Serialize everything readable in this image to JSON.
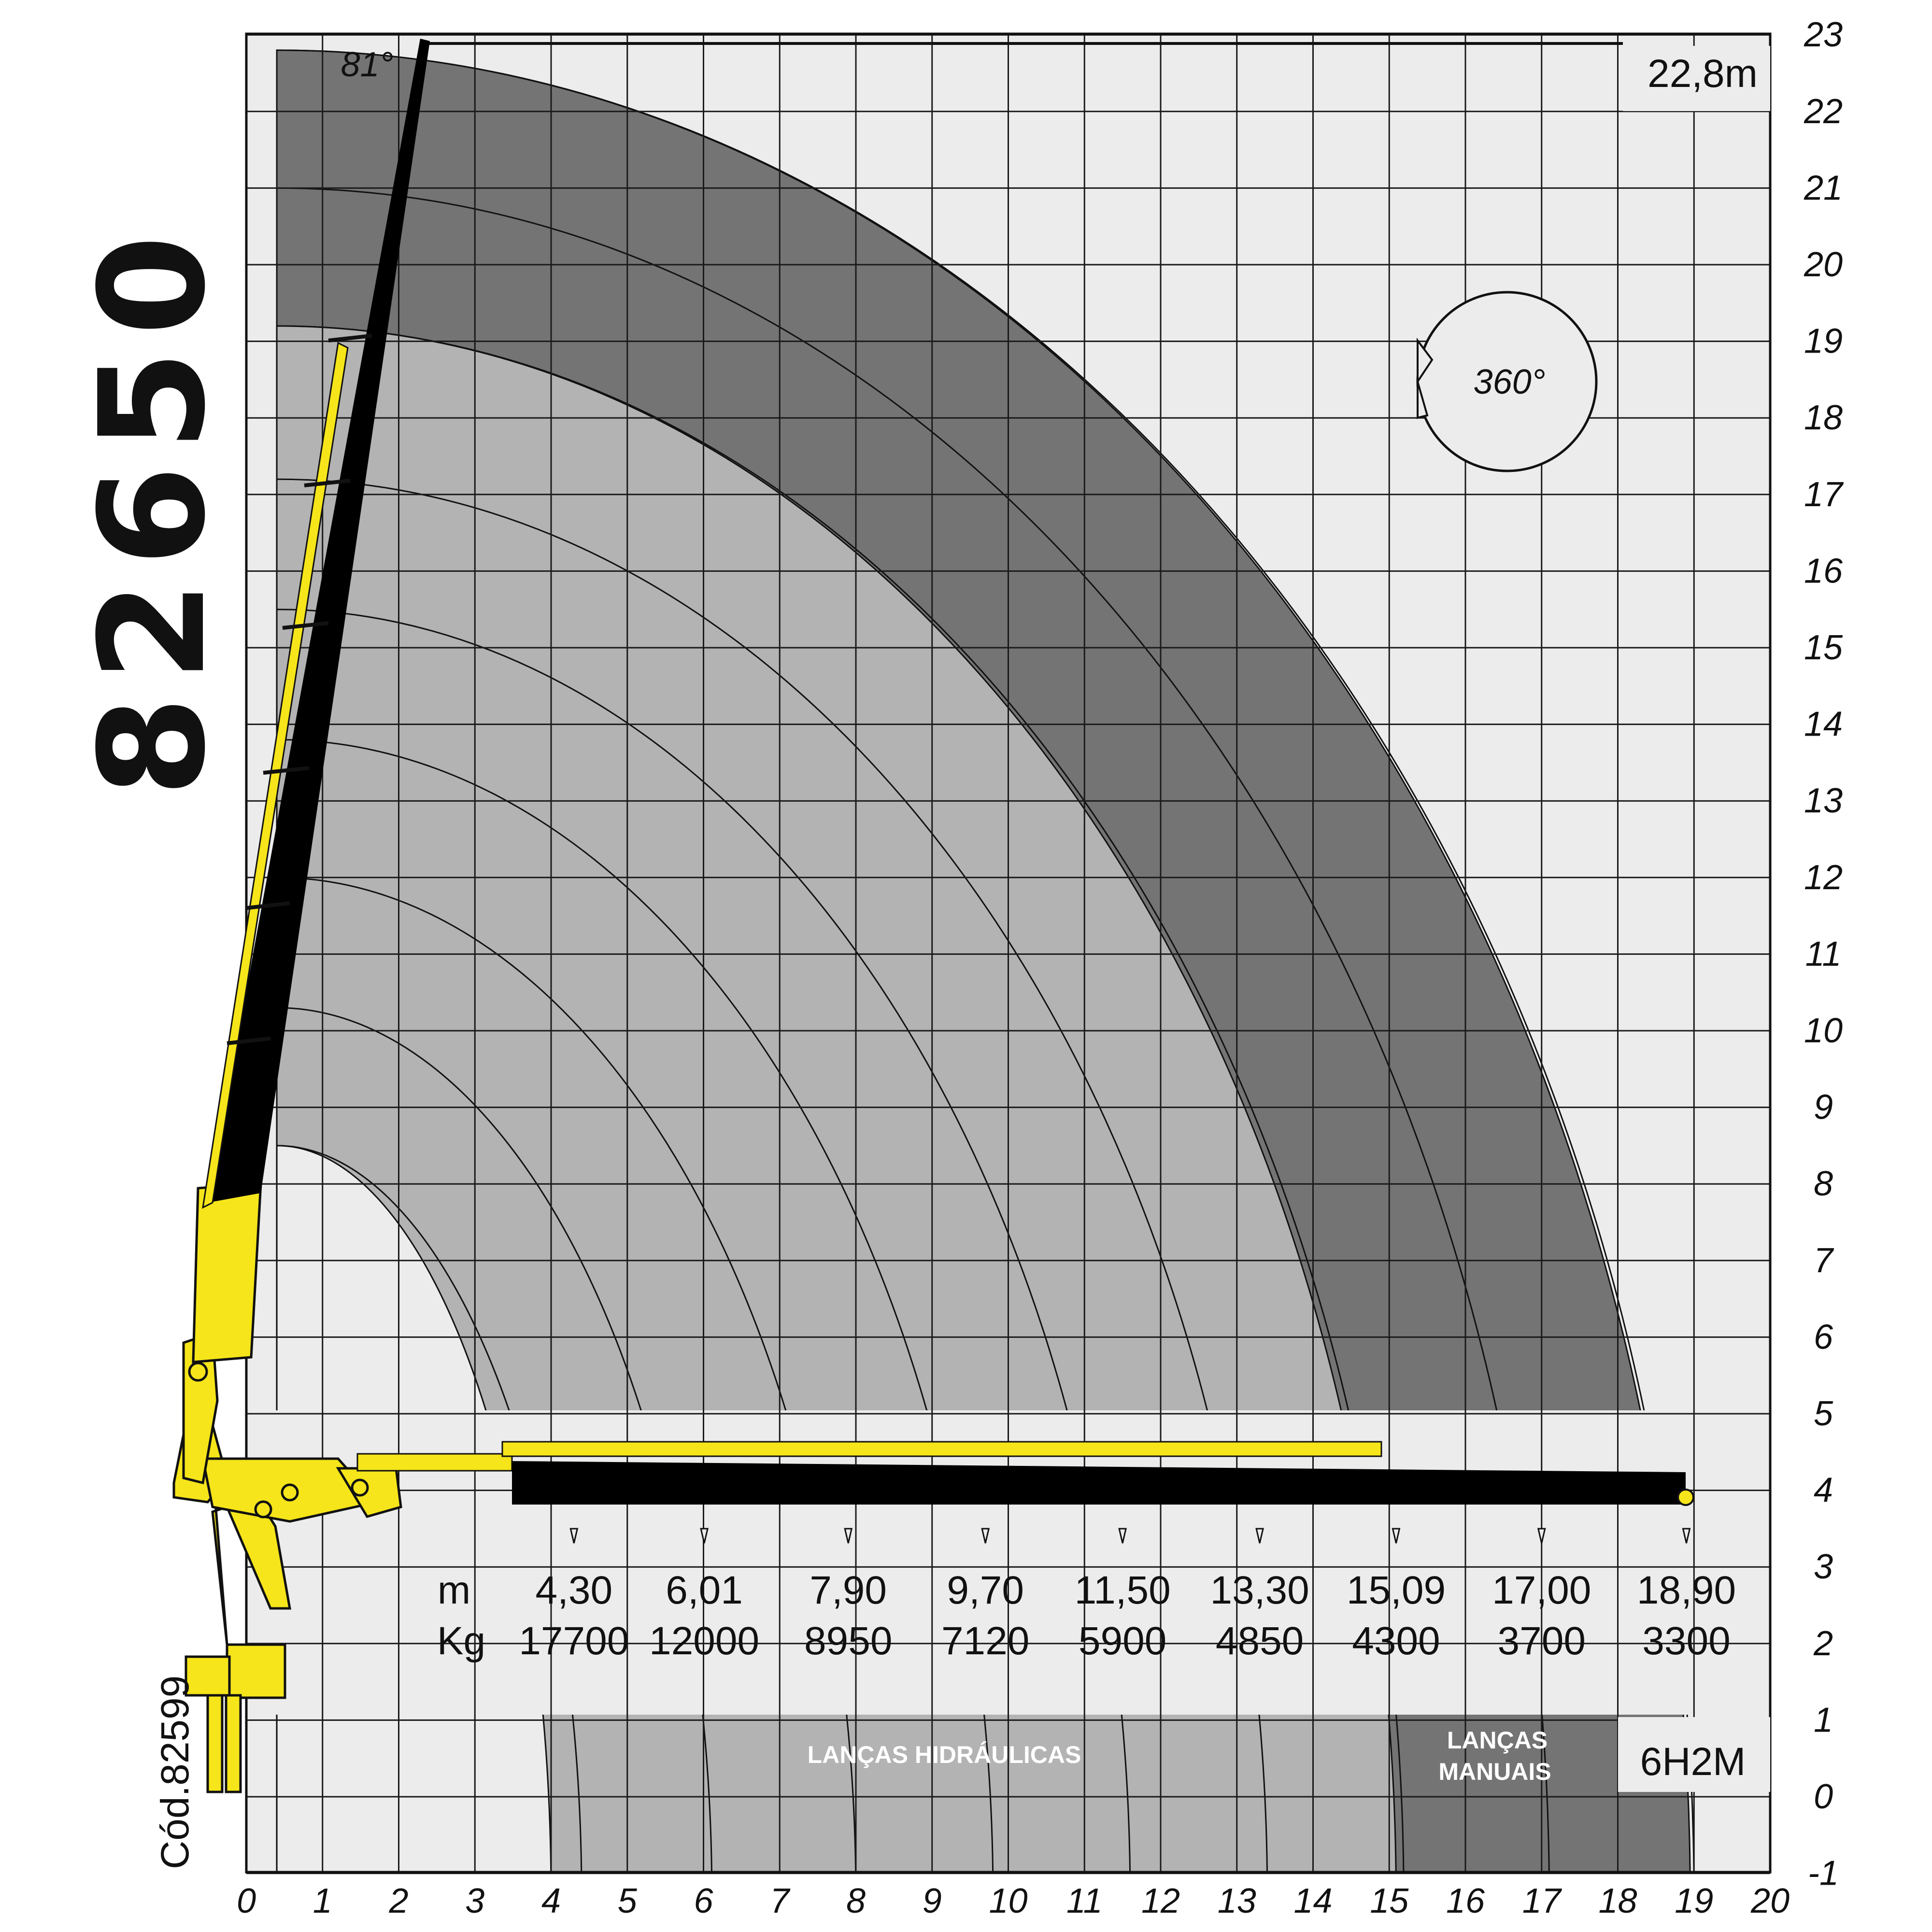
{
  "title": "82650",
  "code": "Cód.82599",
  "max_height_label": "22,8m",
  "angle_label": "81°",
  "rotation_label": "360°",
  "config_label": "6H2M",
  "hydraulic_label": "LANÇAS HIDRÁULICAS",
  "manual_label_line1": "LANÇAS",
  "manual_label_line2": "MANUAIS",
  "row_label_m": "m",
  "row_label_kg": "Kg",
  "colors": {
    "background": "#ffffff",
    "grid_bg": "#ececec",
    "envelope_light": "#b3b3b3",
    "envelope_dark": "#747474",
    "boom_black": "#000000",
    "crane_yellow": "#f5e51a"
  },
  "chart_data": {
    "type": "load-chart",
    "x_ticks": [
      "0",
      "1",
      "2",
      "3",
      "4",
      "5",
      "6",
      "7",
      "8",
      "9",
      "10",
      "11",
      "12",
      "13",
      "14",
      "15",
      "16",
      "17",
      "18",
      "19",
      "20"
    ],
    "y_ticks": [
      "-1",
      "0",
      "1",
      "2",
      "3",
      "4",
      "5",
      "6",
      "7",
      "8",
      "9",
      "10",
      "11",
      "12",
      "13",
      "14",
      "15",
      "16",
      "17",
      "18",
      "19",
      "20",
      "21",
      "22",
      "23"
    ],
    "xlim": [
      0,
      20
    ],
    "ylim": [
      -1,
      23
    ],
    "max_height_m": 22.8,
    "max_angle_deg": 81,
    "hydraulic_extensions": 6,
    "manual_extensions": 2,
    "reach_table": [
      {
        "reach": "4,30",
        "load": "17700",
        "x": 4.3
      },
      {
        "reach": "6,01",
        "load": "12000",
        "x": 6.01
      },
      {
        "reach": "7,90",
        "load": "8950",
        "x": 7.9
      },
      {
        "reach": "9,70",
        "load": "7120",
        "x": 9.7
      },
      {
        "reach": "11,50",
        "load": "5900",
        "x": 11.5
      },
      {
        "reach": "13,30",
        "load": "4850",
        "x": 13.3
      },
      {
        "reach": "15,09",
        "load": "4300",
        "x": 15.09
      },
      {
        "reach": "17,00",
        "load": "3700",
        "x": 17.0
      },
      {
        "reach": "18,90",
        "load": "3300",
        "x": 18.9
      }
    ]
  }
}
